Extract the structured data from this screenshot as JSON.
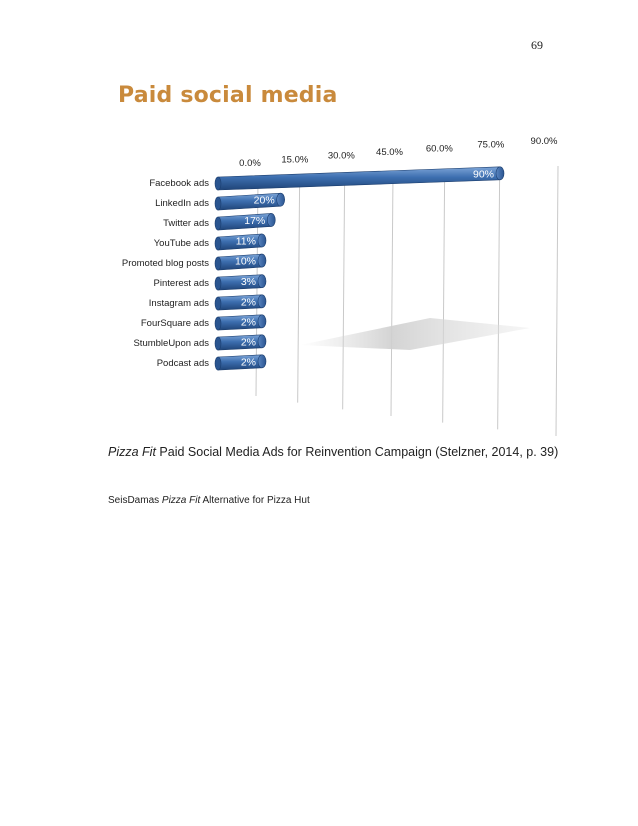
{
  "page": {
    "number": "69"
  },
  "chart_data": {
    "type": "bar",
    "orientation": "horizontal",
    "title": "Paid social media",
    "categories": [
      "Facebook ads",
      "LinkedIn ads",
      "Twitter ads",
      "YouTube ads",
      "Promoted blog posts",
      "Pinterest ads",
      "Instagram ads",
      "FourSquare ads",
      "StumbleUpon ads",
      "Podcast ads"
    ],
    "values": [
      90,
      20,
      17,
      11,
      10,
      3,
      2,
      2,
      2,
      2
    ],
    "value_labels": [
      "90%",
      "20%",
      "17%",
      "11%",
      "10%",
      "3%",
      "2%",
      "2%",
      "2%",
      "2%"
    ],
    "ticks": [
      "0.0%",
      "15.0%",
      "30.0%",
      "45.0%",
      "60.0%",
      "75.0%",
      "90.0%"
    ],
    "xlim": [
      0,
      90
    ],
    "bar_color": "#3d6fb0",
    "title_color": "#c98a3c",
    "grid": true
  },
  "caption": {
    "italic": "Pizza Fit",
    "text": " Paid Social Media Ads for Reinvention Campaign (Stelzner, 2014, p. 39)"
  },
  "footer": {
    "prefix": "SeisDamas ",
    "italic": "Pizza Fit",
    "suffix": " Alternative for Pizza Hut"
  }
}
